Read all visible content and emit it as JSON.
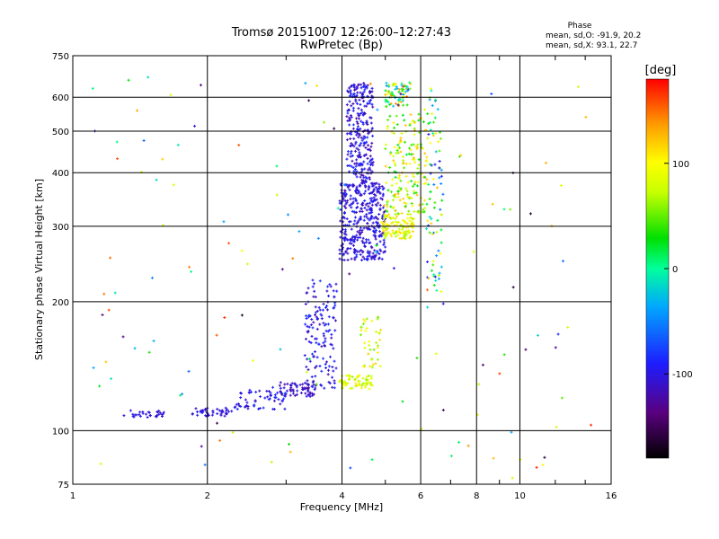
{
  "header": {
    "title_line1": "Tromsø 20151007 12:26:00–12:27:43",
    "title_line2": "RwPretec (Bp)",
    "phase_heading": "Phase",
    "phase_line_o": "mean, sd,O: -91.9, 20.2",
    "phase_line_x": "mean, sd,X:  93.1, 22.7"
  },
  "chart_data": {
    "type": "scatter",
    "title": "Tromsø 20151007 12:26:00–12:27:43",
    "subtitle": "RwPretec (Bp)",
    "xlabel": "Frequency [MHz]",
    "ylabel": "Stationary phase Virtual Height [km]",
    "x_scale": "log",
    "y_scale": "log",
    "xlim": [
      1,
      16
    ],
    "ylim": [
      75,
      750
    ],
    "x_ticks": [
      1,
      2,
      4,
      6,
      8,
      10,
      16
    ],
    "x_tick_labels": [
      "1",
      "2",
      "4",
      "6",
      "8",
      "10",
      "16"
    ],
    "y_ticks": [
      75,
      100,
      200,
      300,
      400,
      500,
      600,
      750
    ],
    "y_tick_labels": [
      "75",
      "100",
      "200",
      "300",
      "400",
      "500",
      "600",
      "750"
    ],
    "grid": true,
    "colorbar": {
      "label": "[deg]",
      "range": [
        -180,
        180
      ],
      "ticks": [
        100,
        0,
        -100
      ],
      "tick_labels": [
        "100",
        "0",
        "-100"
      ]
    },
    "clusters": [
      {
        "name": "E-region low trace",
        "x": [
          1.3,
          1.6
        ],
        "y": [
          107,
          112
        ],
        "n": 30,
        "phase": [
          -110,
          -95
        ]
      },
      {
        "name": "E-region low trace 2",
        "x": [
          1.85,
          2.3
        ],
        "y": [
          108,
          113
        ],
        "n": 40,
        "phase": [
          -115,
          -95
        ]
      },
      {
        "name": "E to F1 ramp",
        "x": [
          2.3,
          3.0
        ],
        "y": [
          112,
          125
        ],
        "n": 60,
        "phase": [
          -115,
          -80
        ]
      },
      {
        "name": "E to F1 ramp 2",
        "x": [
          2.9,
          3.5
        ],
        "y": [
          120,
          130
        ],
        "n": 60,
        "phase": [
          -130,
          -90
        ]
      },
      {
        "name": "F1 cusp",
        "x": [
          3.3,
          3.9
        ],
        "y": [
          125,
          225
        ],
        "n": 140,
        "phase": [
          -120,
          -80
        ]
      },
      {
        "name": "F1 yellow band",
        "x": [
          3.95,
          4.7
        ],
        "y": [
          125,
          135
        ],
        "n": 70,
        "phase": [
          60,
          110
        ]
      },
      {
        "name": "F1 yellow upper",
        "x": [
          4.4,
          4.9
        ],
        "y": [
          140,
          185
        ],
        "n": 40,
        "phase": [
          50,
          120
        ]
      },
      {
        "name": "F2 O trace",
        "x": [
          3.95,
          5.0
        ],
        "y": [
          250,
          380
        ],
        "n": 380,
        "phase": [
          -120,
          -85
        ]
      },
      {
        "name": "F2 O tall trace",
        "x": [
          4.1,
          4.7
        ],
        "y": [
          380,
          650
        ],
        "n": 260,
        "phase": [
          -125,
          -80
        ]
      },
      {
        "name": "F2 X trace",
        "x": [
          4.9,
          5.8
        ],
        "y": [
          280,
          320
        ],
        "n": 120,
        "phase": [
          60,
          120
        ]
      },
      {
        "name": "F2 X tall",
        "x": [
          5.0,
          6.2
        ],
        "y": [
          320,
          550
        ],
        "n": 180,
        "phase": [
          20,
          130
        ]
      },
      {
        "name": "F2 top cluster",
        "x": [
          5.0,
          5.7
        ],
        "y": [
          570,
          650
        ],
        "n": 70,
        "phase": [
          -60,
          160
        ]
      },
      {
        "name": "Upper right trace",
        "x": [
          6.2,
          6.7
        ],
        "y": [
          210,
          640
        ],
        "n": 80,
        "phase": [
          -110,
          130
        ]
      },
      {
        "name": "Scatter",
        "x": [
          1.1,
          14.5
        ],
        "y": [
          76,
          700
        ],
        "n": 140,
        "phase": [
          -170,
          170
        ]
      }
    ]
  }
}
